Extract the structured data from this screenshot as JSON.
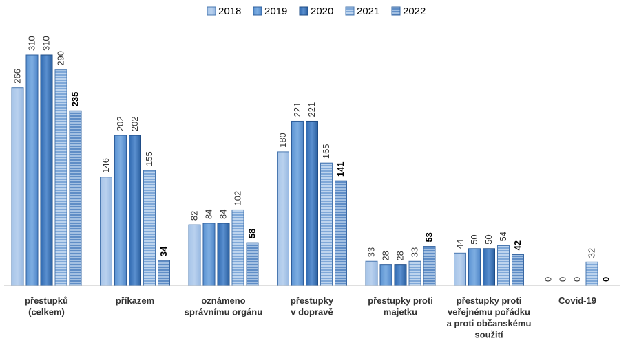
{
  "chart_data": {
    "type": "bar",
    "categories": [
      [
        "přestupků",
        "(celkem)"
      ],
      [
        "příkazem"
      ],
      [
        "oznámeno",
        "správnímu orgánu"
      ],
      [
        "přestupky",
        "v dopravě"
      ],
      [
        "přestupky proti",
        "majetku"
      ],
      [
        "přestupky proti",
        "veřejnému pořádku",
        "a proti občanskému",
        "soužití"
      ],
      [
        "Covid-19"
      ]
    ],
    "series": [
      {
        "name": "2018",
        "values": [
          266,
          146,
          82,
          180,
          33,
          44,
          0
        ]
      },
      {
        "name": "2019",
        "values": [
          310,
          202,
          84,
          221,
          28,
          50,
          0
        ]
      },
      {
        "name": "2020",
        "values": [
          310,
          202,
          84,
          221,
          28,
          50,
          0
        ]
      },
      {
        "name": "2021",
        "values": [
          290,
          155,
          102,
          165,
          33,
          54,
          32
        ]
      },
      {
        "name": "2022",
        "values": [
          235,
          34,
          58,
          141,
          53,
          42,
          0
        ]
      }
    ],
    "ylim": [
      0,
      310
    ],
    "grid": false,
    "legend_position": "top-center",
    "colors": {
      "2018": "#a9c6e8",
      "2019": "#6a9fd8",
      "2020": "#3f78bd",
      "2021": "#9cbde2",
      "2022": "#7ea6d3"
    }
  }
}
